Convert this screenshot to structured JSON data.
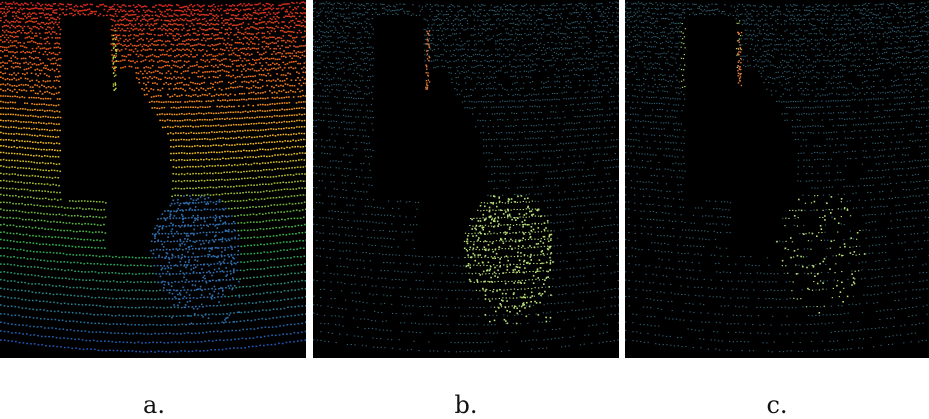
{
  "figure": {
    "panels": [
      {
        "id": "a",
        "caption": "a.",
        "coloring": "height-rainbow"
      },
      {
        "id": "b",
        "caption": "b.",
        "coloring": "segment-highlight-vehicle"
      },
      {
        "id": "c",
        "caption": "c.",
        "coloring": "segment-highlight-sparse"
      }
    ]
  },
  "colors": {
    "background": "#000000",
    "base_points": "#2f5f73",
    "highlight_green": "#b8e07a",
    "highlight_orange": "#e07a3a",
    "rainbow_top": "#d42a1e",
    "rainbow_mid": "#f0c020",
    "rainbow_low": "#2bb54a",
    "rainbow_bottom": "#1e50c8",
    "object_blue": "#2f6fb0"
  }
}
